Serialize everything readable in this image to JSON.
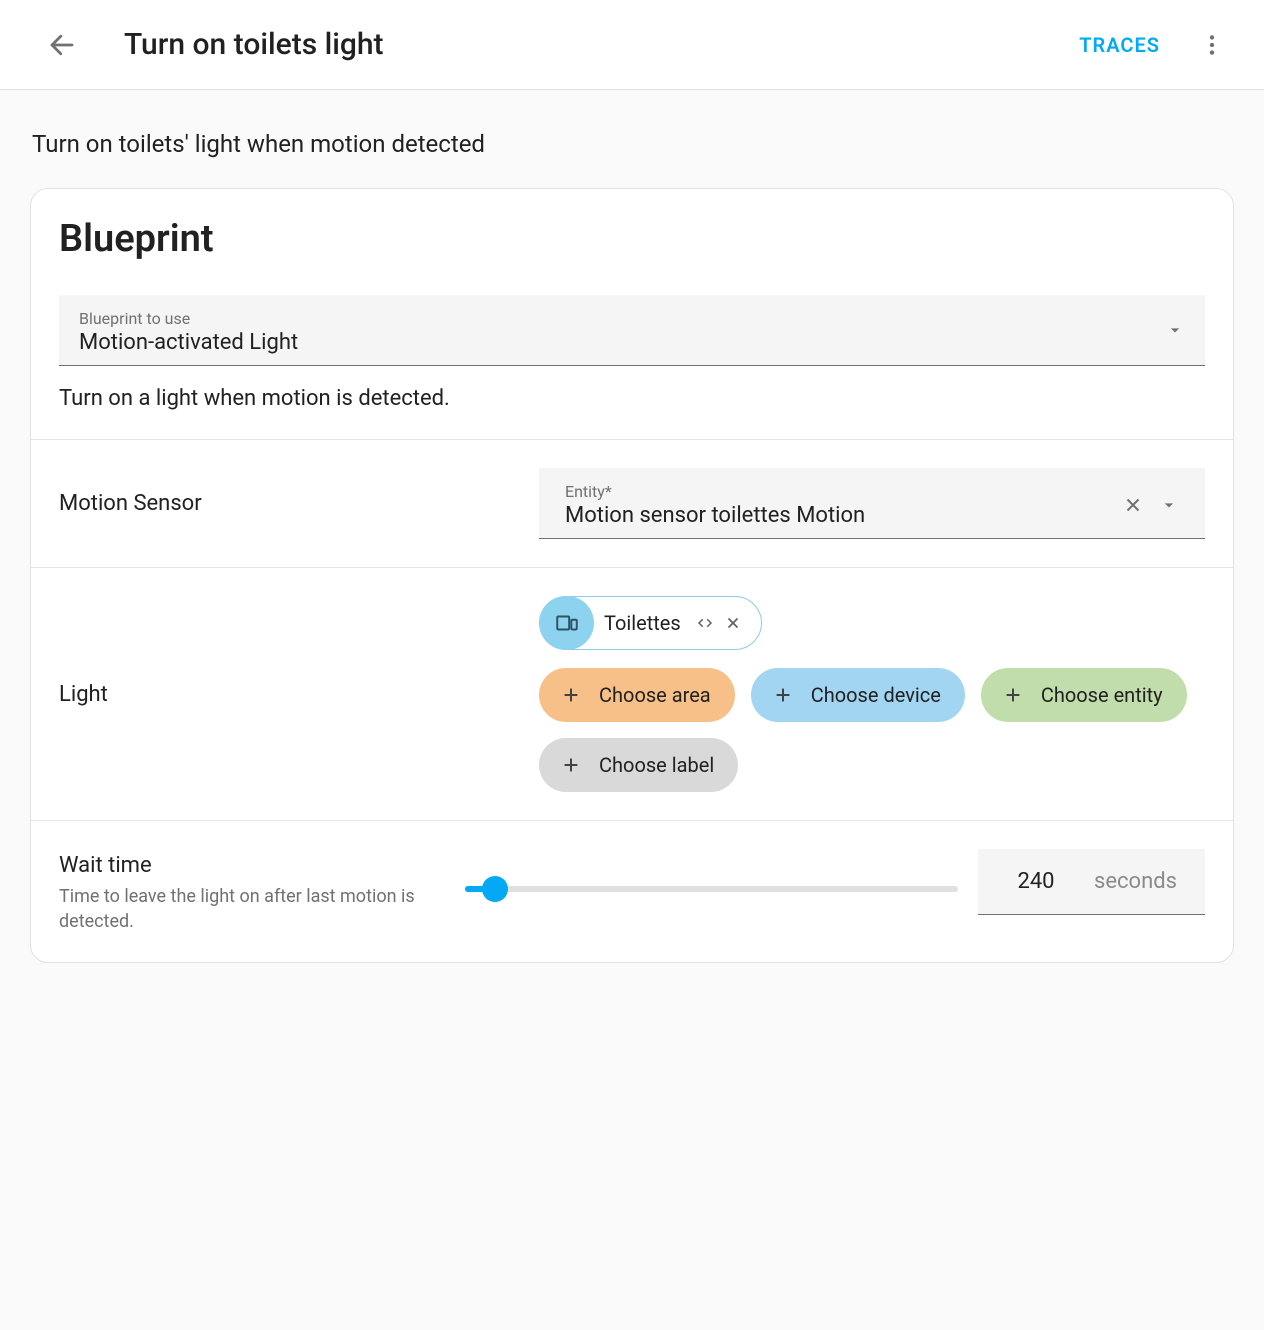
{
  "header": {
    "title": "Turn on toilets light",
    "traces": "TRACES"
  },
  "description": "Turn on toilets' light when motion detected",
  "blueprint": {
    "heading": "Blueprint",
    "selector_label": "Blueprint to use",
    "selector_value": "Motion-activated Light",
    "helper": "Turn on a light when motion is detected."
  },
  "motion": {
    "label": "Motion Sensor",
    "entity_label": "Entity*",
    "entity_value": "Motion sensor toilettes Motion"
  },
  "light": {
    "label": "Light",
    "selected_chip": "Toilettes",
    "choose_area": "Choose area",
    "choose_device": "Choose device",
    "choose_entity": "Choose entity",
    "choose_label": "Choose label",
    "chip_colors": {
      "selected_bg": "#8dd3f0",
      "area": "#f7c088",
      "device": "#a2d5f2",
      "entity": "#c1ddab",
      "label": "#d9d9d9"
    }
  },
  "wait": {
    "label": "Wait time",
    "helper": "Time to leave the light on after last motion is detected.",
    "value": "240",
    "unit": "seconds",
    "slider_percent": 6
  },
  "colors": {
    "accent": "#03a9f4",
    "text_primary": "#212121",
    "text_secondary": "#717171",
    "input_bg": "#f5f5f5",
    "divider": "#e6e6e6"
  }
}
